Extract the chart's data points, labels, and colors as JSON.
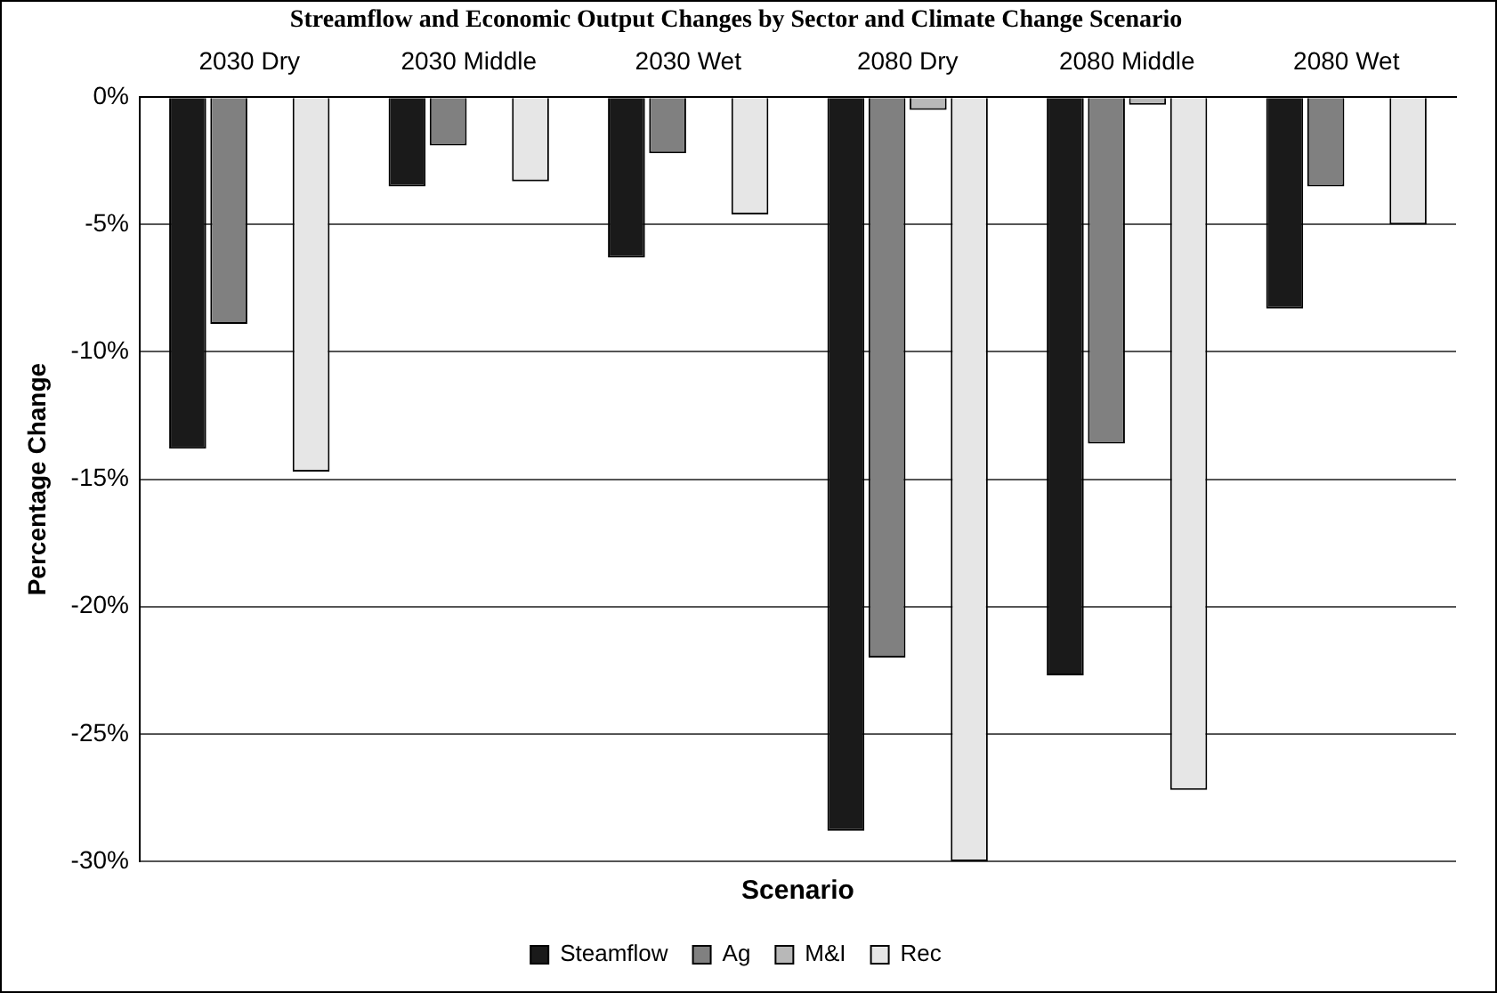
{
  "chart_data": {
    "type": "bar",
    "title": "Streamflow and Economic Output Changes by Sector and Climate Change Scenario",
    "xlabel": "Scenario",
    "ylabel": "Percentage Change",
    "categories": [
      "2030 Dry",
      "2030 Middle",
      "2030 Wet",
      "2080 Dry",
      "2080 Middle",
      "2080 Wet"
    ],
    "series": [
      {
        "name": "Steamflow",
        "color": "#1a1a1a",
        "values": [
          -13.8,
          -3.5,
          -6.3,
          -28.8,
          -22.7,
          -8.3
        ]
      },
      {
        "name": "Ag",
        "color": "#808080",
        "values": [
          -8.9,
          -1.9,
          -2.2,
          -22.0,
          -13.6,
          -3.5
        ]
      },
      {
        "name": "M&I",
        "color": "#b8b8b8",
        "values": [
          0,
          0,
          0,
          -0.5,
          -0.3,
          0
        ]
      },
      {
        "name": "Rec",
        "color": "#e6e6e6",
        "values": [
          -14.7,
          -3.3,
          -4.6,
          -30.0,
          -27.2,
          -5.0
        ]
      }
    ],
    "ylim": [
      -30,
      0
    ],
    "yticks": [
      {
        "value": 0,
        "label": "0%"
      },
      {
        "value": -5,
        "label": "-5%"
      },
      {
        "value": -10,
        "label": "-10%"
      },
      {
        "value": -15,
        "label": "-15%"
      },
      {
        "value": -20,
        "label": "-20%"
      },
      {
        "value": -25,
        "label": "-25%"
      },
      {
        "value": -30,
        "label": "-30%"
      }
    ],
    "grid": "y",
    "legend": "bottom"
  }
}
